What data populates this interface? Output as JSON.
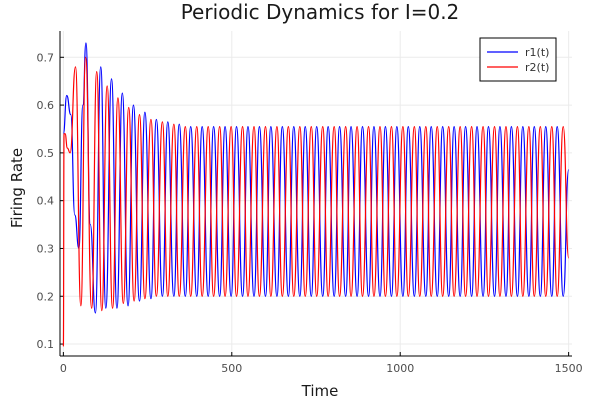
{
  "chart_data": {
    "type": "line",
    "title": "Periodic Dynamics for I=0.2",
    "xlabel": "Time",
    "ylabel": "Firing Rate",
    "xlim": [
      -10,
      1510
    ],
    "ylim": [
      0.075,
      0.755
    ],
    "xticks": [
      0,
      500,
      1000,
      1500
    ],
    "yticks": [
      0.1,
      0.2,
      0.3,
      0.4,
      0.5,
      0.6,
      0.7
    ],
    "grid": true,
    "legend_position": "top-right",
    "series": [
      {
        "name": "r1(t)",
        "color": "#0000ff",
        "x": [
          0,
          10,
          22,
          34,
          46,
          58,
          67,
          80,
          95,
          111,
          126,
          143,
          159,
          175,
          192,
          208,
          226,
          242,
          260,
          276,
          294,
          310,
          328,
          344,
          362,
          378,
          396,
          412,
          430,
          446,
          464,
          480,
          498,
          514,
          532,
          548,
          566,
          582,
          600,
          616,
          634,
          650,
          668,
          684,
          702,
          718,
          736,
          752,
          770,
          786,
          804,
          820,
          838,
          854,
          872,
          888,
          906,
          922,
          940,
          956,
          974,
          990,
          1008,
          1024,
          1042,
          1058,
          1076,
          1092,
          1110,
          1126,
          1144,
          1160,
          1178,
          1194,
          1212,
          1228,
          1246,
          1262,
          1280,
          1296,
          1314,
          1330,
          1348,
          1364,
          1382,
          1398,
          1416,
          1432,
          1450,
          1466,
          1484,
          1500
        ],
        "y": [
          0.54,
          0.62,
          0.58,
          0.37,
          0.3,
          0.6,
          0.73,
          0.35,
          0.165,
          0.68,
          0.175,
          0.655,
          0.175,
          0.625,
          0.18,
          0.6,
          0.19,
          0.585,
          0.195,
          0.57,
          0.2,
          0.565,
          0.2,
          0.56,
          0.2,
          0.555,
          0.2,
          0.555,
          0.2,
          0.555,
          0.2,
          0.555,
          0.2,
          0.555,
          0.2,
          0.555,
          0.2,
          0.555,
          0.2,
          0.555,
          0.2,
          0.555,
          0.2,
          0.555,
          0.2,
          0.555,
          0.2,
          0.555,
          0.2,
          0.555,
          0.2,
          0.555,
          0.2,
          0.555,
          0.2,
          0.555,
          0.2,
          0.555,
          0.2,
          0.555,
          0.2,
          0.555,
          0.2,
          0.555,
          0.2,
          0.555,
          0.2,
          0.555,
          0.2,
          0.555,
          0.2,
          0.555,
          0.2,
          0.555,
          0.2,
          0.555,
          0.2,
          0.555,
          0.2,
          0.555,
          0.2,
          0.555,
          0.2,
          0.555,
          0.2,
          0.555,
          0.2,
          0.555,
          0.2,
          0.555,
          0.2,
          0.465
        ]
      },
      {
        "name": "r2(t)",
        "color": "#ff0000",
        "x": [
          0,
          2,
          5,
          12,
          20,
          36,
          52,
          66,
          84,
          99,
          114,
          130,
          146,
          162,
          178,
          194,
          210,
          226,
          242,
          260,
          276,
          294,
          310,
          328,
          344,
          362,
          378,
          396,
          412,
          430,
          446,
          464,
          480,
          498,
          514,
          532,
          548,
          566,
          582,
          600,
          616,
          634,
          650,
          668,
          684,
          702,
          718,
          736,
          752,
          770,
          786,
          804,
          820,
          838,
          854,
          872,
          888,
          906,
          922,
          940,
          956,
          974,
          990,
          1008,
          1024,
          1042,
          1058,
          1076,
          1092,
          1110,
          1126,
          1144,
          1160,
          1178,
          1194,
          1212,
          1228,
          1246,
          1262,
          1280,
          1296,
          1314,
          1330,
          1348,
          1364,
          1382,
          1398,
          1416,
          1432,
          1450,
          1466,
          1484,
          1500
        ],
        "y": [
          0.095,
          0.54,
          0.54,
          0.51,
          0.5,
          0.68,
          0.18,
          0.7,
          0.175,
          0.67,
          0.17,
          0.64,
          0.175,
          0.615,
          0.185,
          0.595,
          0.19,
          0.58,
          0.195,
          0.57,
          0.2,
          0.565,
          0.2,
          0.56,
          0.2,
          0.555,
          0.2,
          0.555,
          0.2,
          0.555,
          0.2,
          0.555,
          0.2,
          0.555,
          0.2,
          0.555,
          0.2,
          0.555,
          0.2,
          0.555,
          0.2,
          0.555,
          0.2,
          0.555,
          0.2,
          0.555,
          0.2,
          0.555,
          0.2,
          0.555,
          0.2,
          0.555,
          0.2,
          0.555,
          0.2,
          0.555,
          0.2,
          0.555,
          0.2,
          0.555,
          0.2,
          0.555,
          0.2,
          0.555,
          0.2,
          0.555,
          0.2,
          0.555,
          0.2,
          0.555,
          0.2,
          0.555,
          0.2,
          0.555,
          0.2,
          0.555,
          0.2,
          0.555,
          0.2,
          0.555,
          0.2,
          0.555,
          0.2,
          0.555,
          0.2,
          0.555,
          0.2,
          0.555,
          0.2,
          0.555,
          0.2,
          0.555,
          0.28
        ]
      }
    ]
  }
}
